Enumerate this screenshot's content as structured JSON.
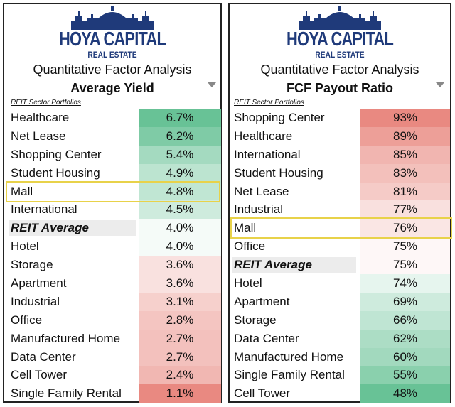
{
  "chart_data": [
    {
      "type": "table",
      "brand": "HOYA CAPITAL",
      "brand_sub": "REAL ESTATE",
      "header": "Quantitative Factor Analysis",
      "title": "Average Yield",
      "subheader": "REIT Sector Portfolios",
      "highlight": "Mall",
      "rows": [
        {
          "name": "Healthcare",
          "value": 6.7,
          "label": "6.7%"
        },
        {
          "name": "Net Lease",
          "value": 6.2,
          "label": "6.2%"
        },
        {
          "name": "Shopping Center",
          "value": 5.4,
          "label": "5.4%"
        },
        {
          "name": "Student Housing",
          "value": 4.9,
          "label": "4.9%"
        },
        {
          "name": "Mall",
          "value": 4.8,
          "label": "4.8%"
        },
        {
          "name": "International",
          "value": 4.5,
          "label": "4.5%"
        },
        {
          "name": "REIT Average",
          "value": 4.0,
          "label": "4.0%",
          "average": true
        },
        {
          "name": "Hotel",
          "value": 4.0,
          "label": "4.0%"
        },
        {
          "name": "Storage",
          "value": 3.6,
          "label": "3.6%"
        },
        {
          "name": "Apartment",
          "value": 3.6,
          "label": "3.6%"
        },
        {
          "name": "Industrial",
          "value": 3.1,
          "label": "3.1%"
        },
        {
          "name": "Office",
          "value": 2.8,
          "label": "2.8%"
        },
        {
          "name": "Manufactured Home",
          "value": 2.7,
          "label": "2.7%"
        },
        {
          "name": "Data Center",
          "value": 2.7,
          "label": "2.7%"
        },
        {
          "name": "Cell Tower",
          "value": 2.4,
          "label": "2.4%"
        },
        {
          "name": "Single Family Rental",
          "value": 1.1,
          "label": "1.1%"
        }
      ],
      "color_scale": {
        "high": "#57bb8a",
        "mid": "#ffffff",
        "low": "#e67c73",
        "high_is_good": true
      }
    },
    {
      "type": "table",
      "brand": "HOYA CAPITAL",
      "brand_sub": "REAL ESTATE",
      "header": "Quantitative Factor Analysis",
      "title": "FCF Payout Ratio",
      "subheader": "REIT Sector Portfolios",
      "highlight": "Mall",
      "rows": [
        {
          "name": "Shopping Center",
          "value": 93,
          "label": "93%"
        },
        {
          "name": "Healthcare",
          "value": 89,
          "label": "89%"
        },
        {
          "name": "International",
          "value": 85,
          "label": "85%"
        },
        {
          "name": "Student Housing",
          "value": 83,
          "label": "83%"
        },
        {
          "name": "Net Lease",
          "value": 81,
          "label": "81%"
        },
        {
          "name": "Industrial",
          "value": 77,
          "label": "77%"
        },
        {
          "name": "Mall",
          "value": 76,
          "label": "76%"
        },
        {
          "name": "Office",
          "value": 75,
          "label": "75%"
        },
        {
          "name": "REIT Average",
          "value": 75,
          "label": "75%",
          "average": true
        },
        {
          "name": "Hotel",
          "value": 74,
          "label": "74%"
        },
        {
          "name": "Apartment",
          "value": 69,
          "label": "69%"
        },
        {
          "name": "Storage",
          "value": 66,
          "label": "66%"
        },
        {
          "name": "Data Center",
          "value": 62,
          "label": "62%"
        },
        {
          "name": "Manufactured Home",
          "value": 60,
          "label": "60%"
        },
        {
          "name": "Single Family Rental",
          "value": 55,
          "label": "55%"
        },
        {
          "name": "Cell Tower",
          "value": 48,
          "label": "48%"
        }
      ],
      "color_scale": {
        "high": "#e67c73",
        "mid": "#ffffff",
        "low": "#57bb8a",
        "high_is_good": false
      }
    }
  ],
  "colors": {
    "brand": "#1f3a7a",
    "highlight_border": "#e8d24a",
    "average_bg": "#ececec"
  },
  "icons": {
    "logo": "capitol-skyline-icon",
    "dropdown": "chevron-down-icon"
  }
}
